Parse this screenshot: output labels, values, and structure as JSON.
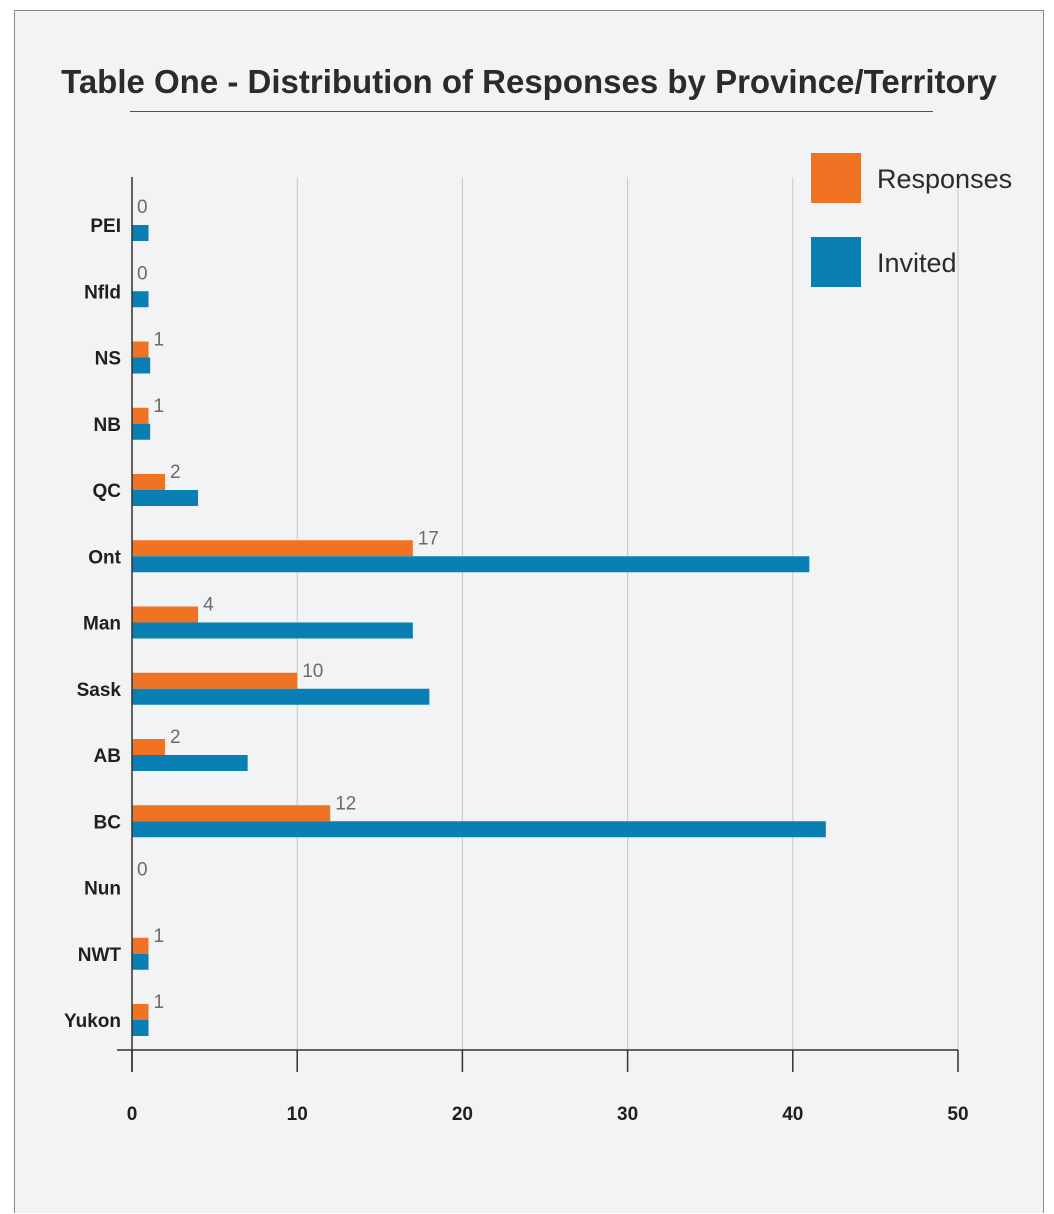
{
  "chart_data": {
    "type": "bar",
    "orientation": "horizontal",
    "title": "Table One - Distribution of Responses by Province/Territory",
    "categories": [
      "PEI",
      "Nfld",
      "NS",
      "NB",
      "QC",
      "Ont",
      "Man",
      "Sask",
      "AB",
      "BC",
      "Nun",
      "NWT",
      "Yukon"
    ],
    "series": [
      {
        "name": "Responses",
        "color": "#f07223",
        "values": [
          0,
          0,
          1,
          1,
          2,
          17,
          4,
          10,
          2,
          12,
          0,
          1,
          1
        ]
      },
      {
        "name": "Invited",
        "color": "#0a7fb3",
        "values": [
          1,
          1,
          1.1,
          1.1,
          4,
          41,
          17,
          18,
          7,
          42,
          0,
          1,
          1
        ]
      }
    ],
    "data_labels": [
      "0",
      "0",
      "1",
      "1",
      "2",
      "17",
      "4",
      "10",
      "2",
      "12",
      "0",
      "1",
      "1"
    ],
    "xlim": [
      0,
      50
    ],
    "xticks": [
      0,
      10,
      20,
      30,
      40,
      50
    ],
    "grid": "vertical",
    "legend": "top-right"
  }
}
